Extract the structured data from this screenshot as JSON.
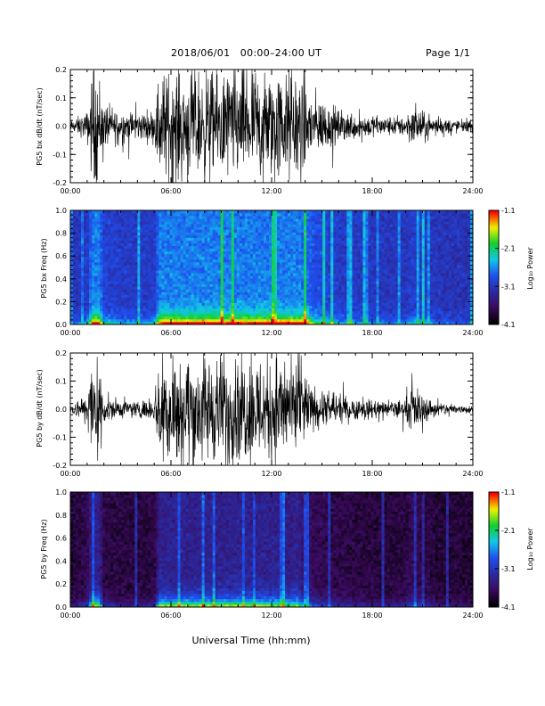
{
  "header": {
    "title": "2018/06/01   00:00–24:00 UT",
    "page": "Page 1/1"
  },
  "xlabel": "Universal Time (hh:mm)",
  "colors": {
    "trace": "#000000",
    "colormap": [
      "#000000",
      "#3a0a5c",
      "#2a2aa0",
      "#1e50f0",
      "#10c8e8",
      "#10d030",
      "#f0f000",
      "#ff0000"
    ]
  },
  "chart_data": [
    {
      "type": "line",
      "ylabel": "PG5 bx dB/dt (nT/sec)",
      "xlim_hours": [
        0,
        24
      ],
      "xticks": [
        "00:00",
        "06:00",
        "12:00",
        "18:00",
        "24:00"
      ],
      "ylim": [
        -0.2,
        0.2
      ],
      "yticks": [
        "-0.2",
        "-0.1",
        "0.0",
        "0.1",
        "0.2"
      ],
      "series": [
        {
          "time_hours": [
            0,
            1,
            1.3,
            1.7,
            2,
            3,
            4,
            5,
            5.3,
            6,
            7,
            8,
            9,
            10,
            11,
            12,
            13,
            13.5,
            14,
            14.5,
            15,
            16,
            17,
            18,
            19,
            20,
            20.5,
            21,
            22,
            23,
            24
          ],
          "envelope": [
            0.02,
            0.05,
            0.2,
            0.2,
            0.08,
            0.06,
            0.05,
            0.06,
            0.2,
            0.2,
            0.2,
            0.2,
            0.2,
            0.2,
            0.2,
            0.2,
            0.2,
            0.2,
            0.2,
            0.12,
            0.1,
            0.06,
            0.05,
            0.04,
            0.035,
            0.04,
            0.07,
            0.05,
            0.03,
            0.025,
            0.02
          ]
        }
      ]
    },
    {
      "type": "heatmap",
      "ylabel": "PG5 bx Freq (Hz)",
      "xlim_hours": [
        0,
        24
      ],
      "xticks": [
        "00:00",
        "06:00",
        "12:00",
        "18:00",
        "24:00"
      ],
      "ylim": [
        0,
        1.0
      ],
      "yticks": [
        "0.0",
        "0.2",
        "0.4",
        "0.6",
        "0.8",
        "1.0"
      ],
      "colorbar": {
        "label": "Log₁₀ Power",
        "range": [
          -4.1,
          -1.1
        ],
        "ticks": [
          "-1.1",
          "-2.1",
          "-3.1",
          "-4.1"
        ]
      },
      "background_log_power": -3.2
    },
    {
      "type": "line",
      "ylabel": "PG5 by dB/dt (nT/sec)",
      "xlim_hours": [
        0,
        24
      ],
      "xticks": [
        "00:00",
        "06:00",
        "12:00",
        "18:00",
        "24:00"
      ],
      "ylim": [
        -0.2,
        0.2
      ],
      "yticks": [
        "-0.2",
        "-0.1",
        "0.0",
        "0.1",
        "0.2"
      ],
      "series": [
        {
          "time_hours": [
            0,
            1,
            1.3,
            1.7,
            2,
            3,
            4,
            5,
            5.3,
            6,
            7,
            8,
            9,
            10,
            11,
            12,
            13,
            13.5,
            14,
            14.5,
            15,
            16,
            17,
            18,
            19,
            20,
            20.5,
            21,
            22,
            23,
            24
          ],
          "envelope": [
            0.015,
            0.06,
            0.2,
            0.2,
            0.05,
            0.035,
            0.03,
            0.04,
            0.2,
            0.2,
            0.2,
            0.2,
            0.2,
            0.2,
            0.2,
            0.2,
            0.18,
            0.2,
            0.12,
            0.08,
            0.07,
            0.05,
            0.04,
            0.035,
            0.03,
            0.04,
            0.09,
            0.05,
            0.025,
            0.02,
            0.015
          ]
        }
      ]
    },
    {
      "type": "heatmap",
      "ylabel": "PG5 by Freq (Hz)",
      "xlim_hours": [
        0,
        24
      ],
      "xticks": [
        "00:00",
        "06:00",
        "12:00",
        "18:00",
        "24:00"
      ],
      "ylim": [
        0,
        1.0
      ],
      "yticks": [
        "0.0",
        "0.2",
        "0.4",
        "0.6",
        "0.8",
        "1.0"
      ],
      "colorbar": {
        "label": "Log₁₀ Power",
        "range": [
          -4.1,
          -1.1
        ],
        "ticks": [
          "-1.1",
          "-2.1",
          "-3.1",
          "-4.1"
        ]
      },
      "background_log_power": -3.9
    }
  ]
}
